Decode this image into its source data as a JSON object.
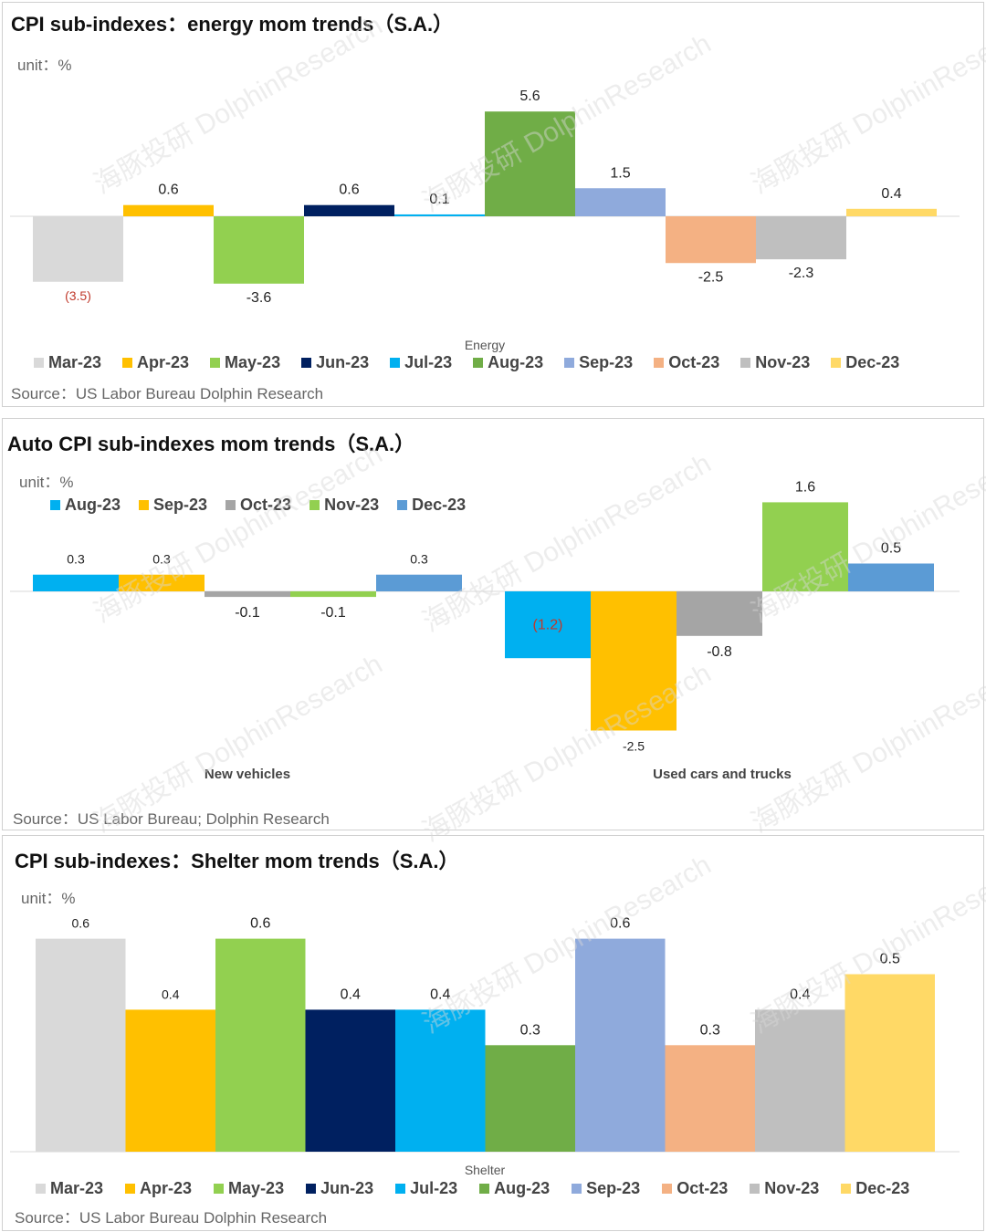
{
  "panels": [
    {
      "title": "CPI sub-indexes：energy  mom trends（S.A.）",
      "unit": "unit：%",
      "source": "Source：US Labor Bureau Dolphin Research"
    },
    {
      "title": "Auto CPI sub-indexes  mom trends（S.A.）",
      "unit": "unit：%",
      "source": "Source：US Labor Bureau; Dolphin Research"
    },
    {
      "title": "CPI sub-indexes：Shelter  mom trends（S.A.）",
      "unit": "unit：%",
      "source": "Source：US Labor Bureau Dolphin Research"
    }
  ],
  "watermark": "海豚投研 DolphinResearch",
  "chart_data": [
    {
      "type": "bar",
      "title": "CPI sub-indexes：energy  mom trends（S.A.）",
      "categories": [
        "Energy"
      ],
      "series": [
        {
          "name": "Mar-23",
          "values": [
            -3.5
          ],
          "label": "(3.5)",
          "color": "#D9D9D9"
        },
        {
          "name": "Apr-23",
          "values": [
            0.6
          ],
          "label": "0.6",
          "color": "#FFC000"
        },
        {
          "name": "May-23",
          "values": [
            -3.6
          ],
          "label": "-3.6",
          "color": "#92D050"
        },
        {
          "name": "Jun-23",
          "values": [
            0.6
          ],
          "label": "0.6",
          "color": "#002060"
        },
        {
          "name": "Jul-23",
          "values": [
            0.1
          ],
          "label": "0.1",
          "color": "#00B0F0"
        },
        {
          "name": "Aug-23",
          "values": [
            5.6
          ],
          "label": "5.6",
          "color": "#70AD47"
        },
        {
          "name": "Sep-23",
          "values": [
            1.5
          ],
          "label": "1.5",
          "color": "#8FAADC"
        },
        {
          "name": "Oct-23",
          "values": [
            -2.5
          ],
          "label": "-2.5",
          "color": "#F4B183"
        },
        {
          "name": "Nov-23",
          "values": [
            -2.3
          ],
          "label": "-2.3",
          "color": "#BFBFBF"
        },
        {
          "name": "Dec-23",
          "values": [
            0.4
          ],
          "label": "0.4",
          "color": "#FFD966"
        }
      ],
      "legend": "bottom"
    },
    {
      "type": "bar",
      "title": "Auto CPI sub-indexes  mom trends（S.A.）",
      "categories": [
        "New vehicles",
        "Used cars and trucks"
      ],
      "series": [
        {
          "name": "Aug-23",
          "values": [
            0.3,
            -1.2
          ],
          "labels": [
            "0.3",
            "(1.2)"
          ],
          "color": "#00B0F0"
        },
        {
          "name": "Sep-23",
          "values": [
            0.3,
            -2.5
          ],
          "labels": [
            "0.3",
            "-2.5"
          ],
          "color": "#FFC000"
        },
        {
          "name": "Oct-23",
          "values": [
            -0.1,
            -0.8
          ],
          "labels": [
            "-0.1",
            "-0.8"
          ],
          "color": "#A5A5A5"
        },
        {
          "name": "Nov-23",
          "values": [
            -0.1,
            1.6
          ],
          "labels": [
            "-0.1",
            "1.6"
          ],
          "color": "#92D050"
        },
        {
          "name": "Dec-23",
          "values": [
            0.3,
            0.5
          ],
          "labels": [
            "0.3",
            "0.5"
          ],
          "color": "#5B9BD5"
        }
      ],
      "legend": "top-left"
    },
    {
      "type": "bar",
      "title": "CPI sub-indexes：Shelter  mom trends（S.A.）",
      "categories": [
        "Shelter"
      ],
      "series": [
        {
          "name": "Mar-23",
          "values": [
            0.6
          ],
          "label": "0.6",
          "color": "#D9D9D9"
        },
        {
          "name": "Apr-23",
          "values": [
            0.4
          ],
          "label": "0.4",
          "color": "#FFC000"
        },
        {
          "name": "May-23",
          "values": [
            0.6
          ],
          "label": "0.6",
          "color": "#92D050"
        },
        {
          "name": "Jun-23",
          "values": [
            0.4
          ],
          "label": "0.4",
          "color": "#002060"
        },
        {
          "name": "Jul-23",
          "values": [
            0.4
          ],
          "label": "0.4",
          "color": "#00B0F0"
        },
        {
          "name": "Aug-23",
          "values": [
            0.3
          ],
          "label": "0.3",
          "color": "#70AD47"
        },
        {
          "name": "Sep-23",
          "values": [
            0.6
          ],
          "label": "0.6",
          "color": "#8FAADC"
        },
        {
          "name": "Oct-23",
          "values": [
            0.3
          ],
          "label": "0.3",
          "color": "#F4B183"
        },
        {
          "name": "Nov-23",
          "values": [
            0.4
          ],
          "label": "0.4",
          "color": "#BFBFBF"
        },
        {
          "name": "Dec-23",
          "values": [
            0.5
          ],
          "label": "0.5",
          "color": "#FFD966"
        }
      ],
      "legend": "bottom"
    }
  ]
}
